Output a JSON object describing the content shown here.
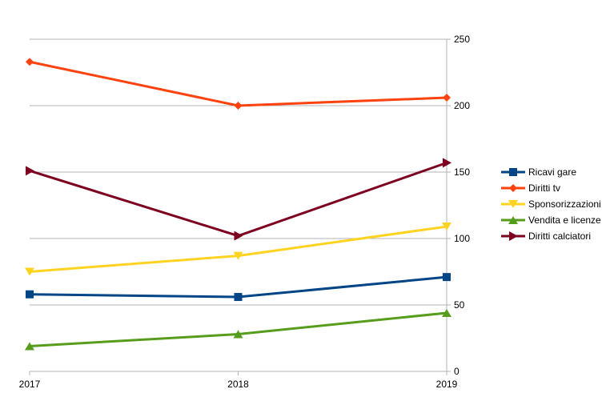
{
  "chart_data": {
    "type": "line",
    "title": "",
    "xlabel": "",
    "ylabel": "",
    "categories": [
      "2017",
      "2018",
      "2019"
    ],
    "ylim": [
      0,
      250
    ],
    "yticks": [
      0,
      50,
      100,
      150,
      200,
      250
    ],
    "y_axis_side": "right",
    "grid": true,
    "legend_position": "right",
    "series": [
      {
        "name": "Ricavi gare",
        "values": [
          58,
          56,
          71
        ],
        "color": "#004586",
        "marker": "square"
      },
      {
        "name": "Diritti tv",
        "values": [
          233,
          200,
          206
        ],
        "color": "#ff420e",
        "marker": "diamond"
      },
      {
        "name": "Sponsorizzazioni",
        "values": [
          75,
          87,
          109
        ],
        "color": "#ffd320",
        "marker": "triangle-down"
      },
      {
        "name": "Vendita e licenze",
        "values": [
          19,
          28,
          44
        ],
        "color": "#579d1c",
        "marker": "triangle-up"
      },
      {
        "name": "Diritti calciatori",
        "values": [
          151,
          102,
          157
        ],
        "color": "#7e0021",
        "marker": "arrow-right"
      }
    ]
  }
}
